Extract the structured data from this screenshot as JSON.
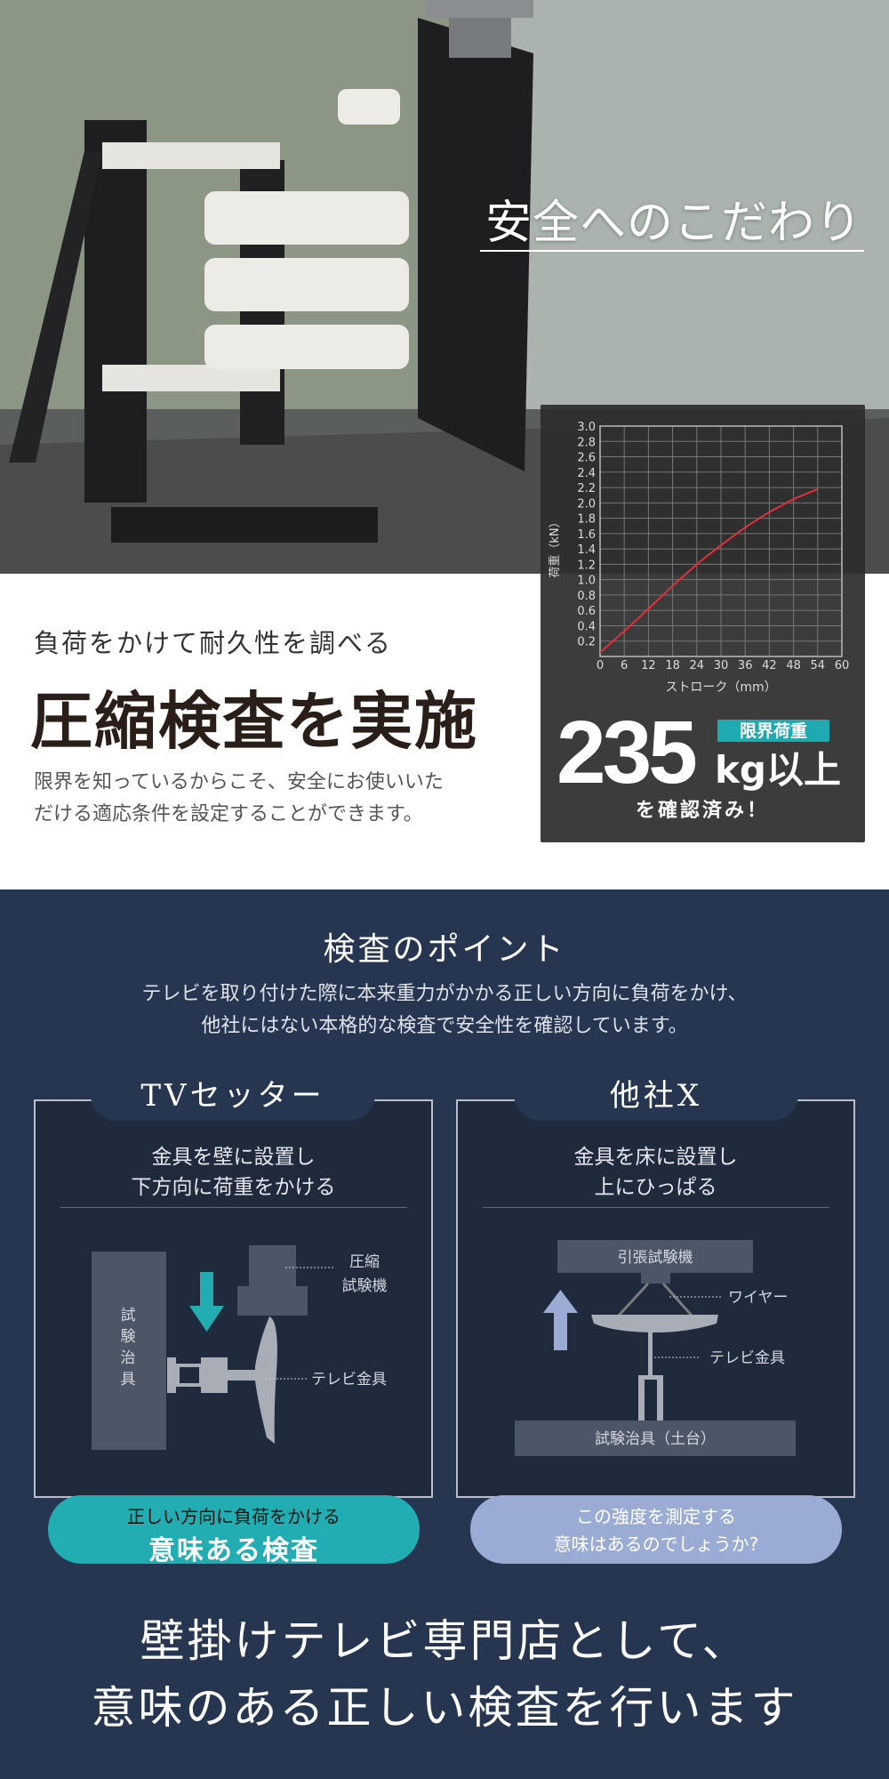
{
  "hero": {
    "title": "安全へのこだわり"
  },
  "chart_data": {
    "type": "line",
    "xlabel": "ストローク（mm）",
    "ylabel": "荷重（kN）",
    "xlim": [
      0,
      60
    ],
    "ylim": [
      0,
      3.0
    ],
    "x_ticks": [
      "0",
      "6",
      "12",
      "18",
      "24",
      "30",
      "36",
      "42",
      "48",
      "54",
      "60"
    ],
    "y_ticks": [
      "0.2",
      "0.4",
      "0.6",
      "0.8",
      "1.0",
      "1.2",
      "1.4",
      "1.6",
      "1.8",
      "2.0",
      "2.2",
      "2.4",
      "2.6",
      "2.8",
      "3.0"
    ],
    "grid": true,
    "series": [
      {
        "color": "#e0323a",
        "x": [
          0,
          6,
          12,
          18,
          24,
          30,
          36,
          42,
          48,
          54
        ],
        "y": [
          0.05,
          0.33,
          0.62,
          0.92,
          1.2,
          1.45,
          1.68,
          1.88,
          2.05,
          2.18
        ]
      }
    ]
  },
  "result": {
    "value": "235",
    "badge": "限界荷重",
    "unit": "kg以上",
    "confirmed": "を確認済み！",
    "badge_color": "#1fa9b0"
  },
  "intro": {
    "lead": "負荷をかけて耐久性を調べる",
    "headline": "圧縮検査を実施",
    "para_1": "限界を知っているからこそ、安全にお使いいた",
    "para_2": "だける適応条件を設定することができます。"
  },
  "points": {
    "title": "検査のポイント",
    "desc_1": "テレビを取り付けた際に本来重力がかかる正しい方向に負荷をかけ、",
    "desc_2": "他社にはない本格的な検査で安全性を確認しています。"
  },
  "cards": [
    {
      "title": "TVセッター",
      "sub_1": "金具を壁に設置し",
      "sub_2": "下方向に荷重をかける",
      "labels": {
        "jig": "試験治具",
        "machine_1": "圧縮",
        "machine_2": "試験機",
        "bracket": "テレビ金具"
      },
      "pill_1": "正しい方向に負荷をかける",
      "pill_2": "意味ある検査",
      "pill_color": "#21adb1",
      "arrow_color": "#21adb1"
    },
    {
      "title": "他社X",
      "sub_1": "金具を床に設置し",
      "sub_2": "上にひっぱる",
      "labels": {
        "machine": "引張試験機",
        "wire": "ワイヤー",
        "bracket": "テレビ金具",
        "base": "試験治具（土台）"
      },
      "pill_1": "この強度を測定する",
      "pill_2": "意味はあるのでしょうか?",
      "pill_color": "#9aacd3",
      "arrow_color": "#9aacd3"
    }
  ],
  "closing": {
    "line_1": "壁掛けテレビ専門店として、",
    "line_2": "意味のある正しい検査を行います"
  }
}
